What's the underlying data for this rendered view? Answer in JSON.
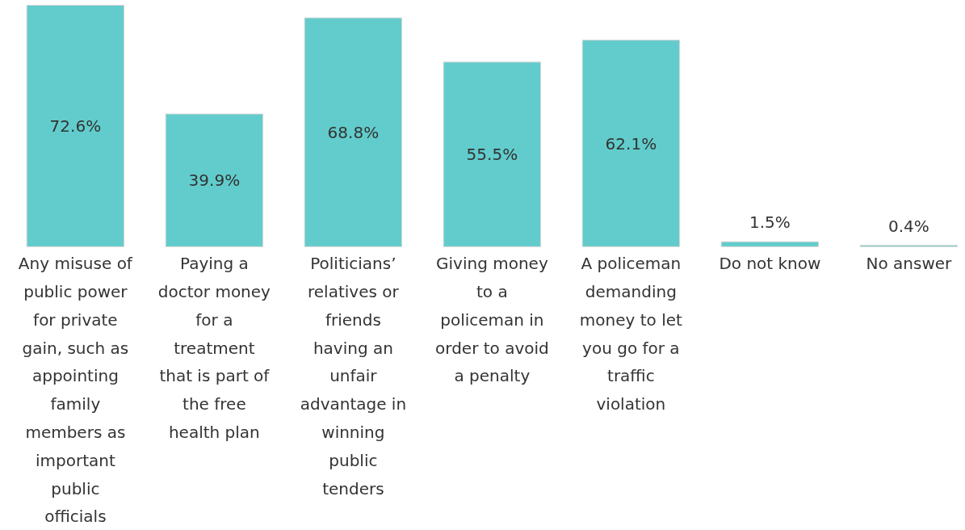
{
  "chart_data": {
    "type": "bar",
    "categories": [
      "Any misuse of\npublic power\nfor private\ngain, such as\nappointing\nfamily\nmembers as\nimportant\npublic\nofficials",
      "Paying a\ndoctor money\nfor a\ntreatment\nthat is part of\nthe free\nhealth plan",
      "Politicians’\nrelatives or\nfriends\nhaving an\nunfair\nadvantage in\nwinning\npublic\ntenders",
      "Giving money\nto a\npoliceman in\norder to avoid\na penalty",
      "A policeman\ndemanding\nmoney to let\nyou go for a\ntraffic\nviolation",
      "Do not know",
      "No answer"
    ],
    "values": [
      72.6,
      39.9,
      68.8,
      55.5,
      62.1,
      1.5,
      0.4
    ],
    "value_labels": [
      "72.6%",
      "39.9%",
      "68.8%",
      "55.5%",
      "62.1%",
      "1.5%",
      "0.4%"
    ],
    "color": "#62cccc",
    "grid": false
  }
}
